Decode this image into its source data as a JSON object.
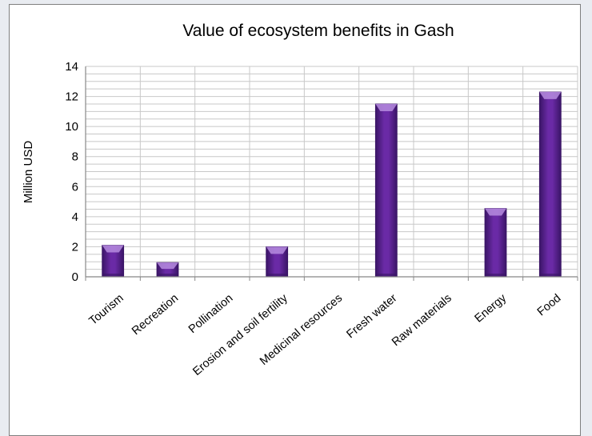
{
  "chart_data": {
    "type": "bar",
    "title": "Value of ecosystem benefits in Gash",
    "xlabel": "",
    "ylabel": "Million USD",
    "categories": [
      "Tourism",
      "Recreation",
      "Pollination",
      "Erosion and soil fertility",
      "Medicinal resources",
      "Fresh water",
      "Raw materials",
      "Energy",
      "Food"
    ],
    "values": [
      2.1,
      0.95,
      0,
      2.0,
      0,
      11.5,
      0,
      4.55,
      12.3
    ],
    "ylim": [
      0,
      14
    ],
    "yticks": [
      "0",
      "2",
      "4",
      "6",
      "8",
      "10",
      "12",
      "14"
    ],
    "minor_grid_step": 0.5,
    "grid": true,
    "legend": "none",
    "colors": {
      "bar": "#6a2aa6",
      "bar_light": "#b68cdf",
      "bar_dark": "#3a1566",
      "grid": "#c8c8c8",
      "axis": "#888888"
    }
  }
}
